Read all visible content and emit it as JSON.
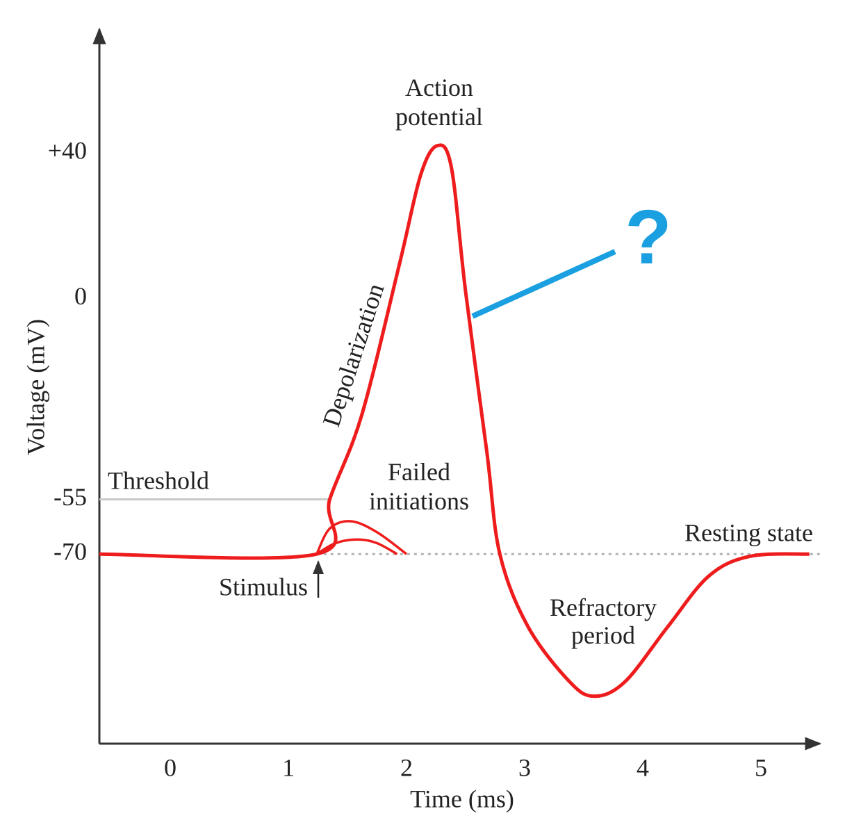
{
  "chart_data": {
    "type": "line",
    "xlabel": "Time (ms)",
    "ylabel": "Voltage (mV)",
    "xlim": [
      -0.6,
      5.5
    ],
    "ylim": [
      -122,
      73
    ],
    "xticks": [
      0,
      1,
      2,
      3,
      4,
      5
    ],
    "yticks": [
      {
        "value": 40,
        "label": "+40"
      },
      0,
      -55,
      -70
    ],
    "grid": false,
    "series": [
      {
        "color": "#ee1c1c",
        "x": [
          -0.6,
          1.24,
          1.35,
          1.62,
          1.94,
          2.12,
          2.26,
          2.38,
          2.5,
          2.68,
          2.79,
          3.03,
          3.38,
          3.59,
          3.85,
          4.21,
          4.56,
          4.91,
          5.41
        ],
        "values": [
          -70,
          -70,
          -55,
          -32,
          9.5,
          34,
          42,
          36,
          2,
          -42,
          -70,
          -90,
          -105,
          -109,
          -105,
          -90,
          -76,
          -70.6,
          -70
        ]
      },
      {
        "color": "#ee1c1c",
        "x": [
          1.24,
          1.35,
          1.53,
          1.75,
          2.0
        ],
        "values": [
          -70,
          -63,
          -61,
          -64,
          -70
        ]
      },
      {
        "color": "#ee1c1c",
        "x": [
          1.24,
          1.4,
          1.59,
          1.75,
          1.92
        ],
        "values": [
          -70,
          -67,
          -66,
          -67,
          -70
        ]
      }
    ],
    "reference_lines": [
      {
        "value": -55,
        "x": [
          -0.6,
          1.35
        ],
        "color": "#c8c8c8",
        "dashed": false
      },
      {
        "value": -70,
        "x": [
          1.24,
          5.5
        ],
        "color": "#b0b0b8",
        "dashed": true
      }
    ],
    "annotations": {
      "action_potential": [
        "Action",
        "potential"
      ],
      "depolarization": "Depolarization",
      "threshold": "Threshold",
      "failed_initiations": [
        "Failed",
        "initiations"
      ],
      "resting_state": "Resting state",
      "stimulus": "Stimulus",
      "refractory_period": [
        "Refractory",
        "period"
      ],
      "question": "?"
    }
  }
}
